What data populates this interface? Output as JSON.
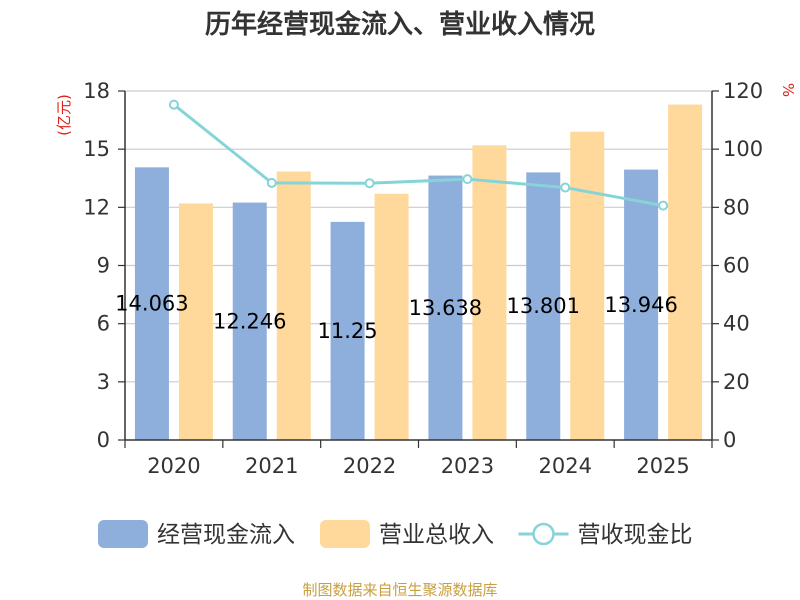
{
  "chart_data": {
    "type": "bar",
    "title": "历年经营现金流入、营业收入情况",
    "categories": [
      "2020",
      "2021",
      "2022",
      "2023",
      "2024",
      "2025"
    ],
    "y_left": {
      "unit": "(亿元)",
      "ylim": [
        0,
        18
      ],
      "ticks": [
        0,
        3,
        6,
        9,
        12,
        15,
        18
      ]
    },
    "y_right": {
      "unit": "%",
      "ylim": [
        0,
        120
      ],
      "ticks": [
        0,
        20,
        40,
        60,
        80,
        100,
        120
      ]
    },
    "series": [
      {
        "name": "经营现金流入",
        "kind": "bar",
        "axis": "left",
        "color": "#8eaedb",
        "values": [
          14.063,
          12.246,
          11.25,
          13.638,
          13.801,
          13.946
        ],
        "labels": [
          "14.063",
          "12.246",
          "11.25",
          "13.638",
          "13.801",
          "13.946"
        ]
      },
      {
        "name": "营业总收入",
        "kind": "bar",
        "axis": "left",
        "color": "#fed99b",
        "values": [
          12.2,
          13.85,
          12.7,
          15.2,
          15.9,
          17.3
        ]
      },
      {
        "name": "营收现金比",
        "kind": "line",
        "axis": "right",
        "color": "#86d4d8",
        "values": [
          115.3,
          88.4,
          88.3,
          89.7,
          86.8,
          80.6
        ]
      }
    ],
    "grid": true,
    "legend": "bottom"
  },
  "source": "制图数据来自恒生聚源数据库"
}
